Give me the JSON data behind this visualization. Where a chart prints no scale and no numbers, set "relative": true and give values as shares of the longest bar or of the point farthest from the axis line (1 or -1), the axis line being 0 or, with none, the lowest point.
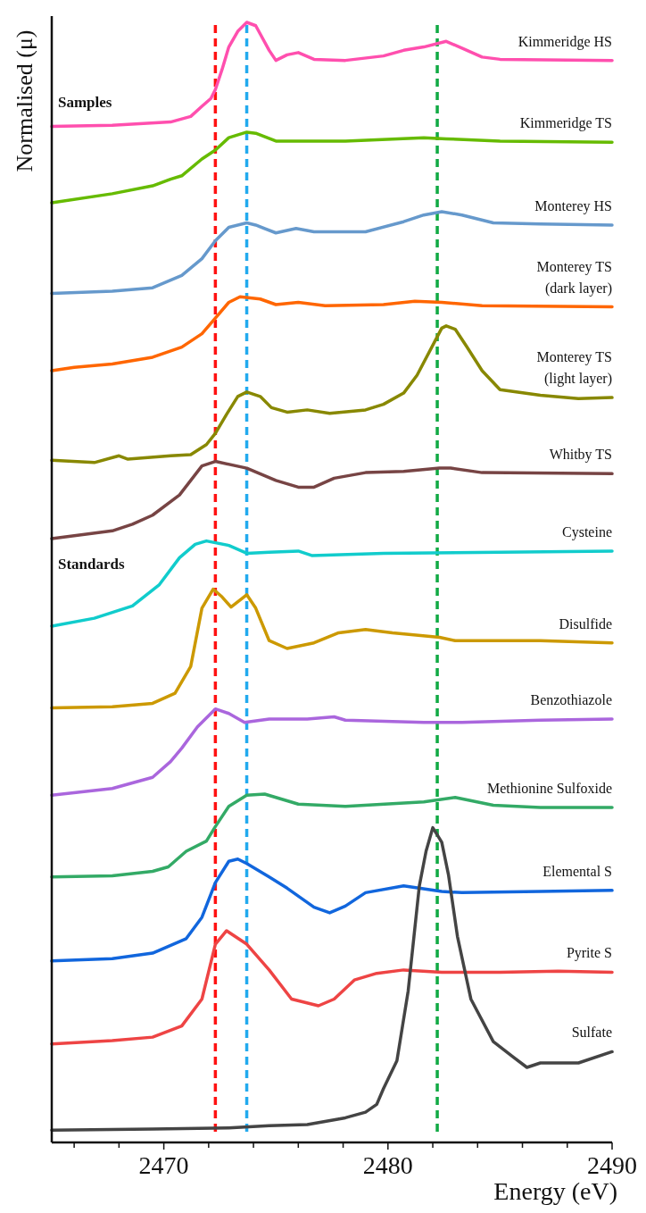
{
  "chart_data": {
    "type": "line",
    "relative": true,
    "xlabel": "Energy (eV)",
    "ylabel": "Normalised (μ)",
    "xlim": [
      2465,
      2490
    ],
    "xticks": [
      {
        "value": 2466,
        "label": null
      },
      {
        "value": 2468,
        "label": null
      },
      2470,
      {
        "value": 2472,
        "label": null
      },
      {
        "value": 2474,
        "label": null
      },
      {
        "value": 2476,
        "label": null
      },
      {
        "value": 2478,
        "label": null
      },
      2480,
      {
        "value": 2482,
        "label": null
      },
      {
        "value": 2484,
        "label": null
      },
      {
        "value": 2486,
        "label": null
      },
      {
        "value": 2488,
        "label": null
      },
      2490
    ],
    "legend": false,
    "marker": "none",
    "line_style": "solid",
    "annotations": [
      "Samples",
      "Standards"
    ],
    "ref_lines": [
      {
        "axis": "x",
        "value": 2472.3,
        "color": "#ff1111",
        "line_style": "dashed"
      },
      {
        "axis": "x",
        "value": 2473.7,
        "color": "#22aaee",
        "line_style": "dashed"
      },
      {
        "axis": "x",
        "value": 2482.2,
        "color": "#11aa44",
        "line_style": "dashed"
      }
    ],
    "series": [
      {
        "name": "Kimmeridge HS",
        "color": "#ff4fae",
        "x": [
          2465,
          2467.7,
          2470.3,
          2471.2,
          2471.7,
          2472.1,
          2472.3,
          2472.6,
          2472.9,
          2473.3,
          2473.7,
          2474.1,
          2474.7,
          2475,
          2475.5,
          2476,
          2476.7,
          2478.1,
          2479.8,
          2480.7,
          2481.6,
          2482.6,
          2483.3,
          2484.2,
          2485,
          2490
        ],
        "values": [
          0.907,
          0.908,
          0.911,
          0.916,
          0.925,
          0.932,
          0.94,
          0.958,
          0.978,
          0.992,
          1.0,
          0.997,
          0.975,
          0.966,
          0.971,
          0.973,
          0.967,
          0.966,
          0.97,
          0.975,
          0.978,
          0.983,
          0.977,
          0.969,
          0.967,
          0.966
        ]
      },
      {
        "name": "Kimmeridge TS",
        "color": "#66bb00",
        "x": [
          2465,
          2467.7,
          2469.5,
          2470.3,
          2470.8,
          2471.7,
          2472.3,
          2472.9,
          2473.7,
          2474.1,
          2475,
          2478.1,
          2481.6,
          2482.6,
          2485,
          2490
        ],
        "values": [
          0.839,
          0.847,
          0.854,
          0.86,
          0.863,
          0.878,
          0.886,
          0.897,
          0.902,
          0.901,
          0.894,
          0.894,
          0.897,
          0.896,
          0.894,
          0.893
        ]
      },
      {
        "name": "Monterey HS",
        "color": "#6699cc",
        "x": [
          2465,
          2467.7,
          2469.5,
          2470.8,
          2471.7,
          2472.3,
          2472.9,
          2473.7,
          2474.1,
          2475,
          2475.9,
          2476.7,
          2479,
          2480.7,
          2481.6,
          2482.4,
          2483.3,
          2484.7,
          2486.8,
          2490
        ],
        "values": [
          0.758,
          0.76,
          0.763,
          0.774,
          0.789,
          0.805,
          0.817,
          0.821,
          0.819,
          0.812,
          0.816,
          0.813,
          0.813,
          0.822,
          0.828,
          0.831,
          0.828,
          0.821,
          0.82,
          0.819
        ]
      },
      {
        "name": "Monterey TS\n(dark layer)",
        "color": "#ff6600",
        "x": [
          2465,
          2466,
          2467.7,
          2469.5,
          2470.8,
          2471.7,
          2472.3,
          2472.9,
          2473.4,
          2474.3,
          2475,
          2476,
          2477.2,
          2479.8,
          2481.2,
          2482.4,
          2484.2,
          2490
        ],
        "values": [
          0.689,
          0.692,
          0.695,
          0.701,
          0.71,
          0.722,
          0.736,
          0.75,
          0.755,
          0.753,
          0.748,
          0.75,
          0.747,
          0.748,
          0.751,
          0.75,
          0.747,
          0.746
        ]
      },
      {
        "name": "Monterey TS\n(light layer)",
        "color": "#888800",
        "x": [
          2465,
          2466.9,
          2468,
          2468.4,
          2470.3,
          2471.2,
          2471.9,
          2472.3,
          2472.8,
          2473.3,
          2473.7,
          2474.3,
          2474.8,
          2475.5,
          2476.4,
          2477.4,
          2479,
          2479.8,
          2480.7,
          2481.3,
          2482.4,
          2482.6,
          2483,
          2483.5,
          2484.2,
          2485,
          2486.8,
          2488.5,
          2490
        ],
        "values": [
          0.609,
          0.607,
          0.613,
          0.61,
          0.613,
          0.614,
          0.623,
          0.633,
          0.65,
          0.666,
          0.67,
          0.666,
          0.656,
          0.652,
          0.654,
          0.651,
          0.654,
          0.659,
          0.669,
          0.685,
          0.727,
          0.729,
          0.726,
          0.711,
          0.689,
          0.672,
          0.667,
          0.664,
          0.665
        ]
      },
      {
        "name": "Whitby TS",
        "color": "#774444",
        "x": [
          2465,
          2467.7,
          2468.6,
          2469.5,
          2470.7,
          2471.7,
          2472.3,
          2473.7,
          2475,
          2476,
          2476.7,
          2477.6,
          2479,
          2480.7,
          2482.3,
          2482.8,
          2484.2,
          2490
        ],
        "values": [
          0.539,
          0.546,
          0.552,
          0.56,
          0.578,
          0.604,
          0.608,
          0.602,
          0.591,
          0.585,
          0.585,
          0.593,
          0.598,
          0.599,
          0.602,
          0.602,
          0.598,
          0.597
        ]
      },
      {
        "name": "Cysteine",
        "color": "#11cccc",
        "x": [
          2465,
          2466.9,
          2468.6,
          2469.8,
          2470.7,
          2471.4,
          2471.9,
          2472.9,
          2473.7,
          2474.7,
          2476,
          2476.6,
          2479.8,
          2485,
          2490
        ],
        "values": [
          0.461,
          0.468,
          0.479,
          0.498,
          0.522,
          0.534,
          0.537,
          0.533,
          0.526,
          0.527,
          0.528,
          0.524,
          0.526,
          0.527,
          0.528
        ]
      },
      {
        "name": "Disulfide",
        "color": "#cc9900",
        "x": [
          2465,
          2467.7,
          2469.5,
          2470.5,
          2471.2,
          2471.7,
          2472.2,
          2472.6,
          2473,
          2473.7,
          2474.1,
          2474.7,
          2475.5,
          2476.7,
          2477.8,
          2479,
          2480.2,
          2482.3,
          2483,
          2486.8,
          2490
        ],
        "values": [
          0.388,
          0.389,
          0.392,
          0.401,
          0.425,
          0.477,
          0.494,
          0.487,
          0.478,
          0.489,
          0.477,
          0.448,
          0.441,
          0.446,
          0.455,
          0.458,
          0.455,
          0.451,
          0.448,
          0.448,
          0.446
        ]
      },
      {
        "name": "Benzothiazole",
        "color": "#aa66dd",
        "x": [
          2465,
          2467.7,
          2469.5,
          2470.3,
          2470.8,
          2471.5,
          2472.3,
          2472.9,
          2473.6,
          2474.7,
          2476.4,
          2477.6,
          2478.1,
          2481.6,
          2483.3,
          2486.8,
          2490
        ],
        "values": [
          0.31,
          0.316,
          0.326,
          0.34,
          0.352,
          0.371,
          0.387,
          0.383,
          0.375,
          0.378,
          0.378,
          0.38,
          0.377,
          0.375,
          0.375,
          0.377,
          0.378
        ]
      },
      {
        "name": "Methionine Sulfoxide",
        "color": "#33aa66",
        "x": [
          2465,
          2467.7,
          2469.5,
          2470.2,
          2471,
          2471.9,
          2472.3,
          2472.9,
          2473.7,
          2474.5,
          2475.5,
          2476,
          2478.1,
          2481.6,
          2483,
          2484.7,
          2486.8,
          2490
        ],
        "values": [
          0.237,
          0.238,
          0.242,
          0.246,
          0.26,
          0.269,
          0.282,
          0.3,
          0.31,
          0.311,
          0.305,
          0.302,
          0.3,
          0.304,
          0.308,
          0.301,
          0.299,
          0.299
        ]
      },
      {
        "name": "Elemental S",
        "color": "#1166dd",
        "x": [
          2465,
          2467.7,
          2469.5,
          2471,
          2471.7,
          2472.3,
          2472.9,
          2473.3,
          2473.7,
          2474.7,
          2475.5,
          2476.7,
          2477.4,
          2478.1,
          2479,
          2480.7,
          2482.4,
          2483.3,
          2486.8,
          2490
        ],
        "values": [
          0.162,
          0.164,
          0.169,
          0.182,
          0.201,
          0.232,
          0.251,
          0.253,
          0.249,
          0.237,
          0.227,
          0.21,
          0.205,
          0.211,
          0.223,
          0.229,
          0.224,
          0.223,
          0.224,
          0.225
        ]
      },
      {
        "name": "Pyrite S",
        "color": "#ee4444",
        "x": [
          2465,
          2467.7,
          2469.5,
          2470.8,
          2471.7,
          2472.3,
          2472.8,
          2473.7,
          2474.7,
          2475.7,
          2476.9,
          2477.6,
          2478.5,
          2479.5,
          2480.7,
          2482.4,
          2485,
          2487.6,
          2490
        ],
        "values": [
          0.088,
          0.091,
          0.094,
          0.104,
          0.128,
          0.177,
          0.189,
          0.177,
          0.154,
          0.128,
          0.122,
          0.128,
          0.145,
          0.151,
          0.154,
          0.152,
          0.152,
          0.153,
          0.152
        ]
      },
      {
        "name": "Sulfate",
        "color": "#444444",
        "x": [
          2465,
          2469.5,
          2472.9,
          2474.7,
          2476.4,
          2478.1,
          2479,
          2479.5,
          2479.8,
          2480.4,
          2480.9,
          2481.4,
          2481.7,
          2482,
          2482.4,
          2482.7,
          2483.1,
          2483.7,
          2484.7,
          2485.6,
          2486.2,
          2486.8,
          2488.5,
          2490
        ],
        "values": [
          0.011,
          0.012,
          0.013,
          0.015,
          0.016,
          0.022,
          0.027,
          0.034,
          0.048,
          0.073,
          0.135,
          0.229,
          0.26,
          0.281,
          0.268,
          0.239,
          0.184,
          0.128,
          0.09,
          0.076,
          0.067,
          0.071,
          0.071,
          0.081
        ]
      }
    ]
  }
}
